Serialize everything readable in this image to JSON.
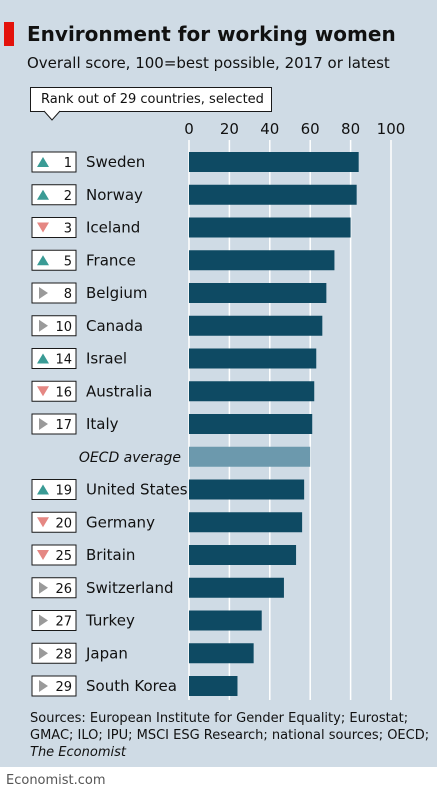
{
  "header": {
    "title": "Environment for working women",
    "subtitle": "Overall score, 100=best possible, 2017 or latest",
    "rank_label": "Rank out of 29 countries, selected"
  },
  "colors": {
    "bar": "#0e4a63",
    "average_bar": "#6c99ad",
    "up": "#3a9b95",
    "down": "#e58783",
    "same": "#9a9a9a",
    "background": "#cfdbe5",
    "brand_red": "#e3120b"
  },
  "sources": {
    "text": "Sources: European Institute for Gender Equality; Eurostat; GMAC; ILO; IPU; MSCI ESG Research; national sources; OECD; ",
    "italic": "The Economist"
  },
  "footer": "Economist.com",
  "chart_data": {
    "type": "bar",
    "orientation": "horizontal",
    "xlim": [
      0,
      100
    ],
    "xticks": [
      0,
      20,
      40,
      60,
      80,
      100
    ],
    "tick_position": "top",
    "grid": true,
    "rows": [
      {
        "rank": "1",
        "change": "up",
        "label": "Sweden",
        "value": 84
      },
      {
        "rank": "2",
        "change": "up",
        "label": "Norway",
        "value": 83
      },
      {
        "rank": "3",
        "change": "down",
        "label": "Iceland",
        "value": 80
      },
      {
        "rank": "5",
        "change": "up",
        "label": "France",
        "value": 72
      },
      {
        "rank": "8",
        "change": "same",
        "label": "Belgium",
        "value": 68
      },
      {
        "rank": "10",
        "change": "same",
        "label": "Canada",
        "value": 66
      },
      {
        "rank": "14",
        "change": "up",
        "label": "Israel",
        "value": 63
      },
      {
        "rank": "16",
        "change": "down",
        "label": "Australia",
        "value": 62
      },
      {
        "rank": "17",
        "change": "same",
        "label": "Italy",
        "value": 61
      },
      {
        "rank": "",
        "change": "none",
        "label": "OECD average",
        "value": 60,
        "average": true
      },
      {
        "rank": "19",
        "change": "up",
        "label": "United States",
        "value": 57
      },
      {
        "rank": "20",
        "change": "down",
        "label": "Germany",
        "value": 56
      },
      {
        "rank": "25",
        "change": "down",
        "label": "Britain",
        "value": 53
      },
      {
        "rank": "26",
        "change": "same",
        "label": "Switzerland",
        "value": 47
      },
      {
        "rank": "27",
        "change": "same",
        "label": "Turkey",
        "value": 36
      },
      {
        "rank": "28",
        "change": "same",
        "label": "Japan",
        "value": 32
      },
      {
        "rank": "29",
        "change": "same",
        "label": "South Korea",
        "value": 24
      }
    ]
  }
}
